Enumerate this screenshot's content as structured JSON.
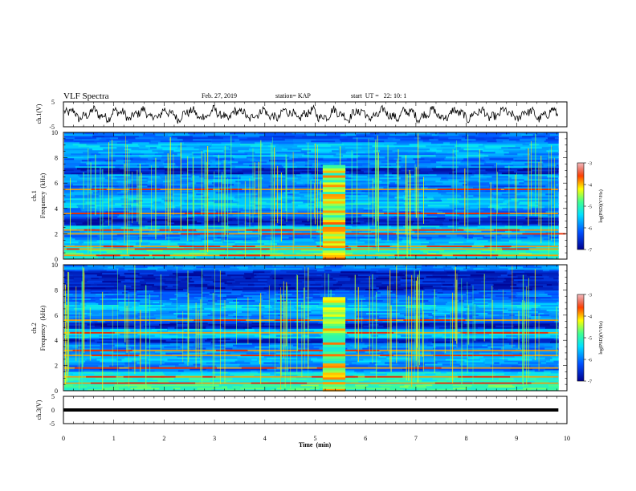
{
  "header": {
    "title": "VLF Spectra",
    "date": "Feb. 27, 2019",
    "station": "station= KAP",
    "start": "start  UT =   22: 10: 1"
  },
  "chart_data": [
    {
      "type": "line",
      "name": "ch1-waveform",
      "ylabel": "ch.1(V)",
      "ylim": [
        -5,
        5
      ],
      "yticks": [
        "5",
        "-5"
      ],
      "xlim": [
        0,
        10
      ],
      "trace_color": "#000000"
    },
    {
      "type": "heatmap",
      "name": "ch1-spectrogram",
      "ylabel_top": "ch.1",
      "ylabel": "Frequency  (kHz)",
      "ylim": [
        0,
        10
      ],
      "yticks": [
        "0",
        "2",
        "4",
        "6",
        "8",
        "10"
      ],
      "xlim": [
        0,
        10
      ],
      "data_end_min": 9.83,
      "burst_interval_min": [
        5.15,
        5.6
      ],
      "dark_bands_khz": [
        [
          2.7,
          3.3
        ],
        [
          3.5,
          3.7
        ],
        [
          6.7,
          7.2
        ]
      ],
      "hot_lines_khz": [
        0.3,
        0.8,
        1.0,
        2.0,
        2.3,
        3.6,
        5.5
      ],
      "colorbar": {
        "label": "log(PSD)(V²/Hz)",
        "ticks": [
          "-3",
          "-4",
          "-5",
          "-6",
          "-7"
        ],
        "range": [
          -7,
          -3
        ]
      }
    },
    {
      "type": "heatmap",
      "name": "ch2-spectrogram",
      "ylabel_top": "ch.2",
      "ylabel": "Frequency  (kHz)",
      "ylim": [
        0,
        10
      ],
      "yticks": [
        "0",
        "2",
        "4",
        "6",
        "8",
        "10"
      ],
      "xlim": [
        0,
        10
      ],
      "data_end_min": 9.83,
      "burst_interval_min": [
        5.15,
        5.6
      ],
      "dark_bands_khz": [
        [
          3.8,
          4.2
        ],
        [
          5.0,
          5.5
        ],
        [
          8.0,
          9.5
        ]
      ],
      "hot_lines_khz": [
        0.6,
        1.1,
        1.8,
        2.8,
        3.2,
        4.6,
        5.6
      ],
      "colorbar": {
        "label": "log(PSD)(V²/Hz)",
        "ticks": [
          "-3",
          "-4",
          "-5",
          "-6",
          "-7"
        ],
        "range": [
          -7,
          -3
        ]
      }
    },
    {
      "type": "line",
      "name": "ch3-waveform",
      "ylabel": "ch.3(V)",
      "ylim": [
        -5,
        5
      ],
      "yticks": [
        "5",
        "0",
        "-5"
      ],
      "xlim": [
        0,
        10
      ],
      "level_v": 0,
      "trace_color": "#000000"
    }
  ],
  "xaxis": {
    "label": "Time  (min)",
    "ticks": [
      "0",
      "1",
      "2",
      "3",
      "4",
      "5",
      "6",
      "7",
      "8",
      "9",
      "10"
    ]
  }
}
